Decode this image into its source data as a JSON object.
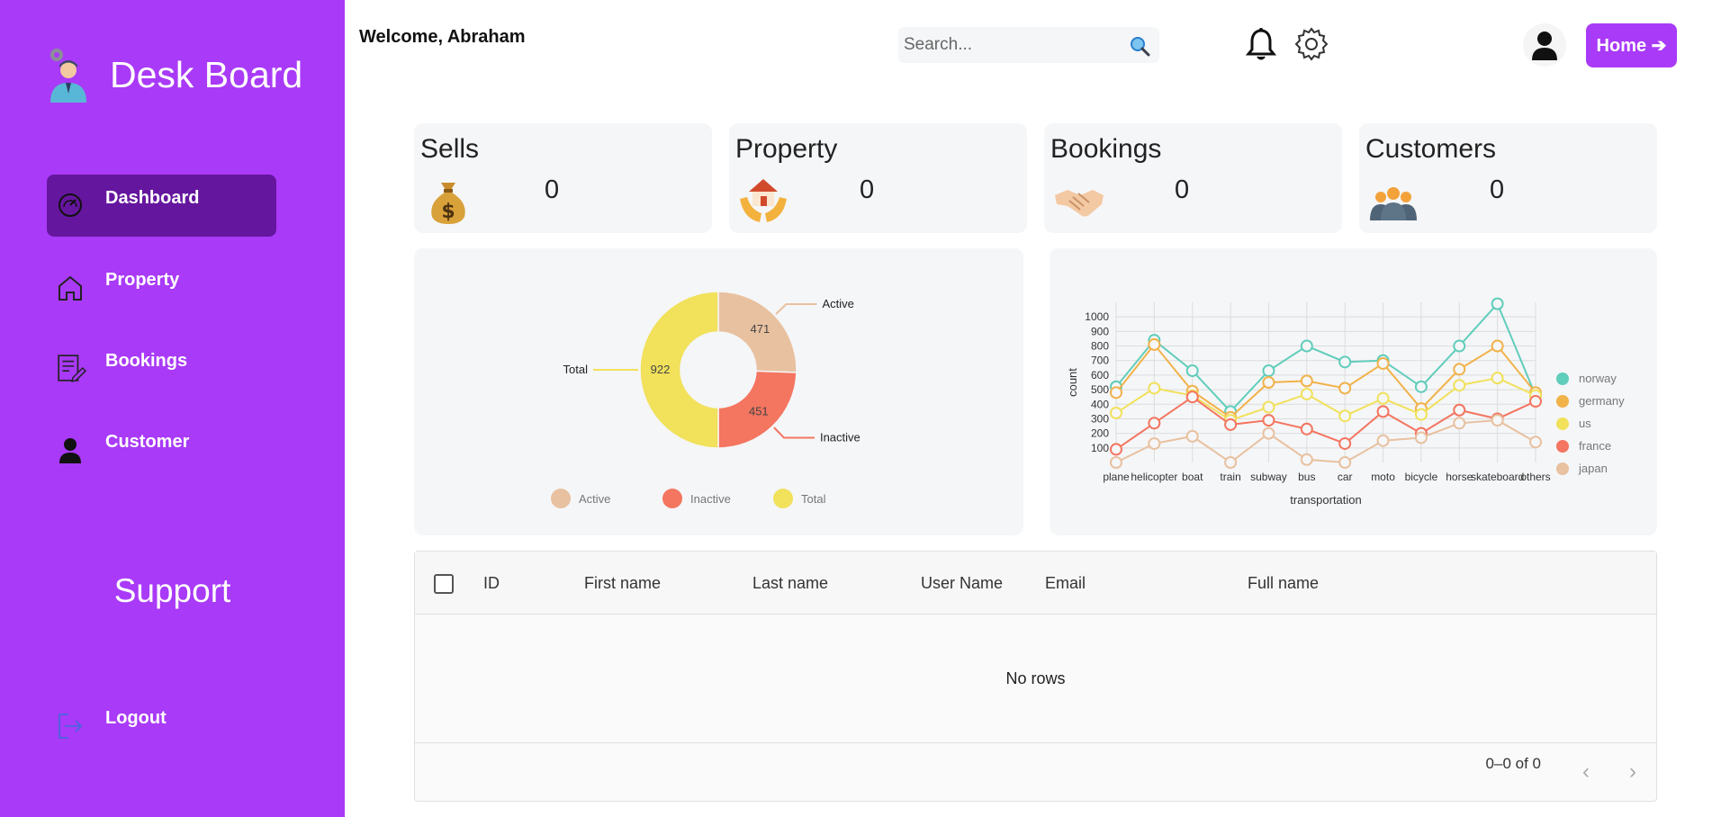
{
  "sidebar": {
    "brand": "Desk Board",
    "items": [
      {
        "label": "Dashboard",
        "icon": "dashboard-icon"
      },
      {
        "label": "Property",
        "icon": "home-icon"
      },
      {
        "label": "Bookings",
        "icon": "bookings-icon"
      },
      {
        "label": "Customer",
        "icon": "person-icon"
      }
    ],
    "support": "Support",
    "logout": "Logout"
  },
  "header": {
    "welcome": "Welcome, Abraham",
    "search_placeholder": "Search...",
    "home_label": "Home ➔"
  },
  "cards": [
    {
      "title": "Sells",
      "value": "0",
      "icon": "money-bag-icon"
    },
    {
      "title": "Property",
      "value": "0",
      "icon": "house-in-hands-icon"
    },
    {
      "title": "Bookings",
      "value": "0",
      "icon": "handshake-icon"
    },
    {
      "title": "Customers",
      "value": "0",
      "icon": "group-icon"
    }
  ],
  "chart_data": [
    {
      "type": "pie",
      "categories": [
        "Active",
        "Inactive",
        "Total"
      ],
      "values": [
        471,
        451,
        922
      ],
      "colors": [
        "#e8c1a0",
        "#f47560",
        "#f1e15b"
      ],
      "legend": [
        "Active",
        "Inactive",
        "Total"
      ],
      "legend_position": "bottom"
    },
    {
      "type": "line",
      "categories": [
        "plane",
        "helicopter",
        "boat",
        "train",
        "subway",
        "bus",
        "car",
        "moto",
        "bicycle",
        "horse",
        "skateboard",
        "others"
      ],
      "xlabel": "transportation",
      "ylabel": "count",
      "ylim": [
        0,
        1100
      ],
      "yticks": [
        100,
        200,
        300,
        400,
        500,
        600,
        700,
        800,
        900,
        1000
      ],
      "legend_position": "right",
      "series": [
        {
          "name": "norway",
          "color": "#61cdbb",
          "values": [
            520,
            840,
            630,
            350,
            630,
            800,
            690,
            700,
            520,
            800,
            1090,
            460
          ]
        },
        {
          "name": "germany",
          "color": "#f1b24a",
          "values": [
            480,
            810,
            490,
            310,
            550,
            560,
            510,
            680,
            370,
            640,
            800,
            480
          ]
        },
        {
          "name": "us",
          "color": "#f1e15b",
          "values": [
            340,
            510,
            460,
            290,
            380,
            470,
            320,
            440,
            330,
            530,
            580,
            460
          ]
        },
        {
          "name": "france",
          "color": "#f47560",
          "values": [
            90,
            270,
            450,
            260,
            290,
            230,
            130,
            350,
            200,
            360,
            300,
            420
          ]
        },
        {
          "name": "japan",
          "color": "#e8c1a0",
          "values": [
            0,
            130,
            180,
            0,
            200,
            20,
            0,
            150,
            170,
            270,
            290,
            140
          ]
        }
      ]
    }
  ],
  "table": {
    "columns": [
      "ID",
      "First name",
      "Last name",
      "User Name",
      "Email",
      "Full name"
    ],
    "empty_text": "No rows",
    "pagination": "0–0 of 0",
    "prev": "‹",
    "next": "›"
  }
}
